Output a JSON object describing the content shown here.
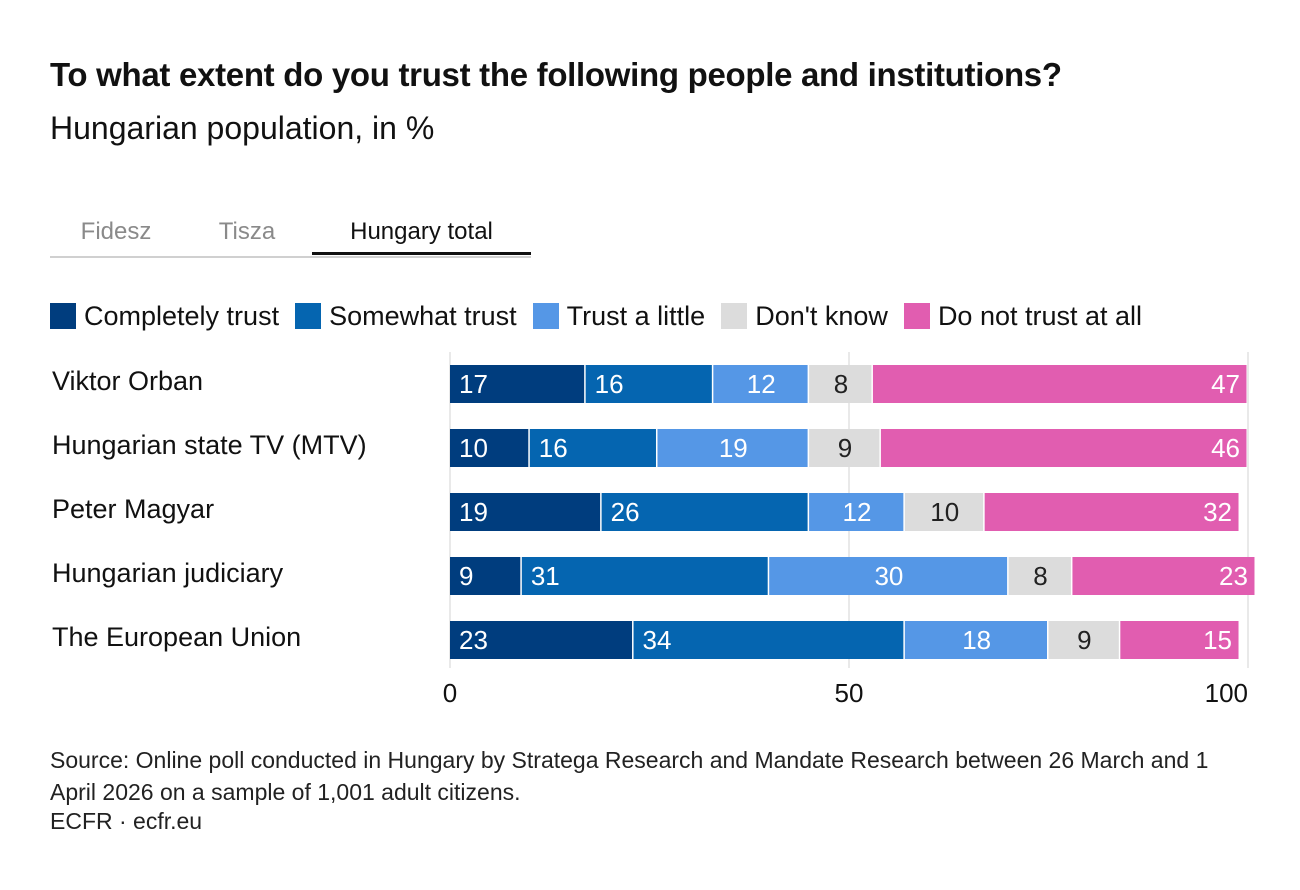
{
  "title": "To what extent do you trust the following people and institutions?",
  "subtitle": "Hungarian population, in %",
  "tabs": [
    {
      "label": "Fidesz",
      "active": false
    },
    {
      "label": "Tisza",
      "active": false
    },
    {
      "label": "Hungary total",
      "active": true
    }
  ],
  "chart_data": {
    "type": "bar",
    "orientation": "horizontal",
    "stacked": true,
    "categories": [
      "Viktor Orban",
      "Hungarian state TV (MTV)",
      "Peter Magyar",
      "Hungarian judiciary",
      "The European Union"
    ],
    "series": [
      {
        "name": "Completely trust",
        "color": "#003d7e",
        "values": [
          17,
          10,
          19,
          9,
          23
        ]
      },
      {
        "name": "Somewhat trust",
        "color": "#0565b0",
        "values": [
          16,
          16,
          26,
          31,
          34
        ]
      },
      {
        "name": "Trust a little",
        "color": "#5597e6",
        "values": [
          12,
          19,
          12,
          30,
          18
        ]
      },
      {
        "name": "Don't know",
        "color": "#dcdcdc",
        "values": [
          8,
          9,
          10,
          8,
          9
        ]
      },
      {
        "name": "Do not trust at all",
        "color": "#e15db0",
        "values": [
          47,
          46,
          32,
          23,
          15
        ]
      }
    ],
    "xlim": [
      0,
      100
    ],
    "xticks": [
      "0",
      "50",
      "100"
    ],
    "grid": true,
    "legend_position": "top"
  },
  "source": "Source: Online poll conducted in Hungary by Stratega Research and Mandate Research between 26 March and 1 April 2026 on a sample of 1,001 adult citizens.",
  "credit": "ECFR · ecfr.eu"
}
